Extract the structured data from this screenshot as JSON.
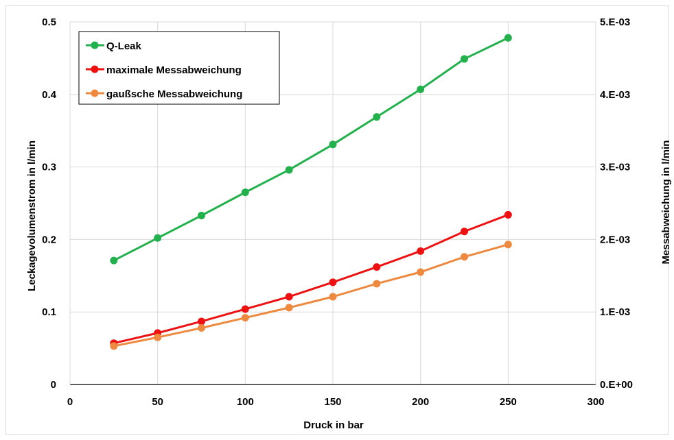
{
  "chart_data": {
    "type": "line",
    "title": "",
    "xlabel": "Druck in bar",
    "ylabel": "Leckagevolumenstrom in l/min",
    "y2label": "Messabweichung in l/min",
    "xlim": [
      0,
      300
    ],
    "ylim": [
      0,
      0.5
    ],
    "y2lim": [
      0,
      0.005
    ],
    "xticks": [
      "0",
      "50",
      "100",
      "150",
      "200",
      "250",
      "300"
    ],
    "yticks": [
      "0",
      "0.1",
      "0.2",
      "0.3",
      "0.4",
      "0.5"
    ],
    "y2ticks": [
      "0.E+00",
      "1.E-03",
      "2.E-03",
      "3.E-03",
      "4.E-03",
      "5.E-03"
    ],
    "grid": true,
    "legend_position": "top-left",
    "x": [
      25,
      50,
      75,
      100,
      125,
      150,
      175,
      200,
      225,
      250
    ],
    "series": [
      {
        "name": "Q-Leak",
        "axis": "left",
        "color": "#22b14c",
        "values": [
          0.171,
          0.202,
          0.233,
          0.265,
          0.296,
          0.331,
          0.369,
          0.407,
          0.449,
          0.478
        ]
      },
      {
        "name": "maximale Messabweichung",
        "axis": "right",
        "color": "#ee1111",
        "values": [
          0.00057,
          0.00071,
          0.00087,
          0.00104,
          0.00121,
          0.00141,
          0.00162,
          0.00184,
          0.00211,
          0.00234
        ]
      },
      {
        "name": "gaußsche Messabweichung",
        "axis": "right",
        "color": "#ed8a3f",
        "values": [
          0.00053,
          0.00065,
          0.00078,
          0.00092,
          0.00106,
          0.00121,
          0.00139,
          0.00155,
          0.00176,
          0.00193
        ]
      }
    ]
  }
}
